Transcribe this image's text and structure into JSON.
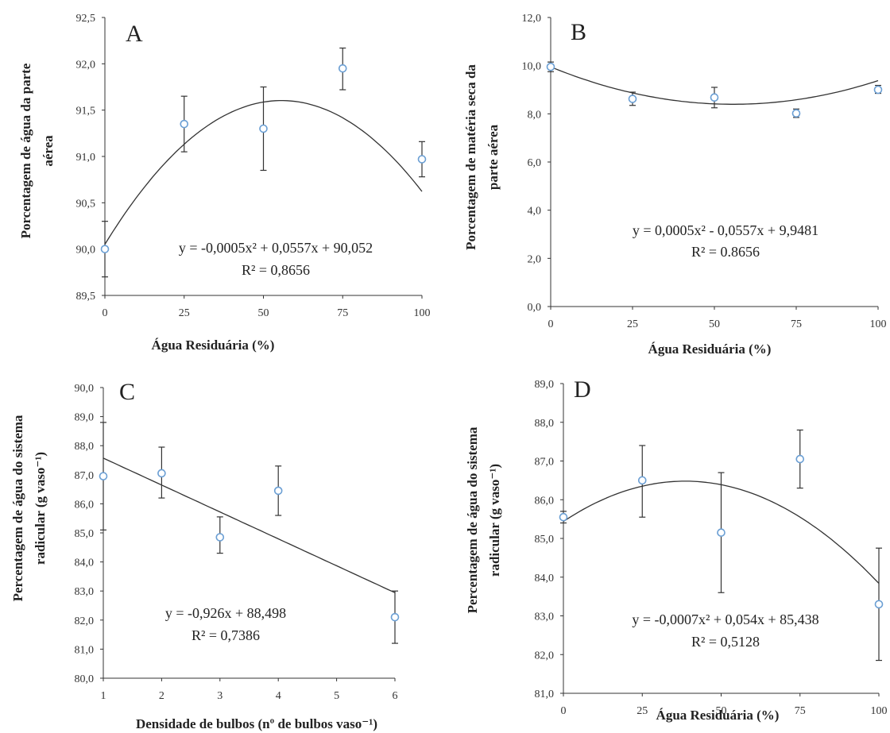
{
  "chart_data": [
    {
      "panel": "A",
      "type": "scatter",
      "xlabel": "Água Residuária (%)",
      "ylabel": [
        "Porcentagem de água da parte",
        "aérea"
      ],
      "xlim": [
        0,
        100
      ],
      "ylim": [
        89.5,
        92.5
      ],
      "xticks": [
        "0",
        "25",
        "50",
        "75",
        "100"
      ],
      "yticks": [
        "89,5",
        "90,0",
        "90,5",
        "91,0",
        "91,5",
        "92,0",
        "92,5"
      ],
      "points": [
        {
          "x": 0,
          "y": 90.0,
          "err_low": 89.7,
          "err_high": 90.3
        },
        {
          "x": 25,
          "y": 91.35,
          "err_low": 91.05,
          "err_high": 91.65
        },
        {
          "x": 50,
          "y": 91.3,
          "err_low": 90.85,
          "err_high": 91.75
        },
        {
          "x": 75,
          "y": 91.95,
          "err_low": 91.72,
          "err_high": 92.17
        },
        {
          "x": 100,
          "y": 90.97,
          "err_low": 90.78,
          "err_high": 91.16
        }
      ],
      "trend": {
        "kind": "quadratic",
        "a": -0.0005,
        "b": 0.0557,
        "c": 90.052
      },
      "equation": "y = -0,0005x² + 0,0557x + 90,052",
      "r2": "R² = 0,8656"
    },
    {
      "panel": "B",
      "type": "scatter",
      "xlabel": "Água Residuária (%)",
      "ylabel": [
        "Porcentagem de matéria seca da",
        "parte aérea"
      ],
      "xlim": [
        0,
        100
      ],
      "ylim": [
        0,
        12
      ],
      "xticks": [
        "0",
        "25",
        "50",
        "75",
        "100"
      ],
      "yticks": [
        "0,0",
        "2,0",
        "4,0",
        "6,0",
        "8,0",
        "10,0",
        "12,0"
      ],
      "points": [
        {
          "x": 0,
          "y": 9.95,
          "err_low": 9.75,
          "err_high": 10.15
        },
        {
          "x": 25,
          "y": 8.62,
          "err_low": 8.35,
          "err_high": 8.9
        },
        {
          "x": 50,
          "y": 8.68,
          "err_low": 8.25,
          "err_high": 9.1
        },
        {
          "x": 75,
          "y": 8.02,
          "err_low": 7.85,
          "err_high": 8.2
        },
        {
          "x": 100,
          "y": 9.0,
          "err_low": 8.85,
          "err_high": 9.18
        }
      ],
      "trend": {
        "kind": "quadratic",
        "a": 0.0005,
        "b": -0.0557,
        "c": 9.9481
      },
      "equation": "y = 0,0005x² - 0,0557x + 9,9481",
      "r2": "R² = 0.8656"
    },
    {
      "panel": "C",
      "type": "scatter",
      "xlabel": "Densidade de bulbos (nº de bulbos vaso⁻¹)",
      "ylabel": [
        "Percentagem de água do sistema",
        "radicular (g vaso⁻¹)"
      ],
      "xlim": [
        1,
        6
      ],
      "ylim": [
        80,
        90
      ],
      "xticks": [
        "1",
        "2",
        "3",
        "4",
        "5",
        "6"
      ],
      "yticks": [
        "80,0",
        "81,0",
        "82,0",
        "83,0",
        "84,0",
        "85,0",
        "86,0",
        "87,0",
        "88,0",
        "89,0",
        "90,0"
      ],
      "points": [
        {
          "x": 1,
          "y": 86.95,
          "err_low": 85.1,
          "err_high": 88.8
        },
        {
          "x": 2,
          "y": 87.05,
          "err_low": 86.2,
          "err_high": 87.95
        },
        {
          "x": 3,
          "y": 84.85,
          "err_low": 84.3,
          "err_high": 85.55
        },
        {
          "x": 4,
          "y": 86.45,
          "err_low": 85.6,
          "err_high": 87.3
        },
        {
          "x": 6,
          "y": 82.1,
          "err_low": 81.2,
          "err_high": 83.0
        }
      ],
      "trend": {
        "kind": "linear",
        "a": 0,
        "b": -0.926,
        "c": 88.498
      },
      "equation": "y = -0,926x + 88,498",
      "r2": "R² = 0,7386"
    },
    {
      "panel": "D",
      "type": "scatter",
      "xlabel": "Água Residuária (%)",
      "ylabel": [
        "Percentagem de água do sistema",
        "radicular (g vaso⁻¹)"
      ],
      "xlim": [
        0,
        100
      ],
      "ylim": [
        81,
        89
      ],
      "xticks": [
        "0",
        "25",
        "50",
        "75",
        "100"
      ],
      "yticks": [
        "81,0",
        "82,0",
        "83,0",
        "84,0",
        "85,0",
        "86,0",
        "87,0",
        "88,0",
        "89,0"
      ],
      "points": [
        {
          "x": 0,
          "y": 85.55,
          "err_low": 85.4,
          "err_high": 85.7
        },
        {
          "x": 25,
          "y": 86.5,
          "err_low": 85.55,
          "err_high": 87.4
        },
        {
          "x": 50,
          "y": 85.15,
          "err_low": 83.6,
          "err_high": 86.7
        },
        {
          "x": 75,
          "y": 87.05,
          "err_low": 86.3,
          "err_high": 87.8
        },
        {
          "x": 100,
          "y": 83.3,
          "err_low": 81.85,
          "err_high": 84.75
        }
      ],
      "trend": {
        "kind": "quadratic",
        "a": -0.0007,
        "b": 0.054,
        "c": 85.438
      },
      "equation": "y = -0,0007x² + 0,054x + 85,438",
      "r2": "R² = 0,5128"
    }
  ],
  "colors": {
    "marker": "#6b9fd4",
    "axis": "#333333",
    "trend": "#333333",
    "errorbar": "#333333"
  }
}
